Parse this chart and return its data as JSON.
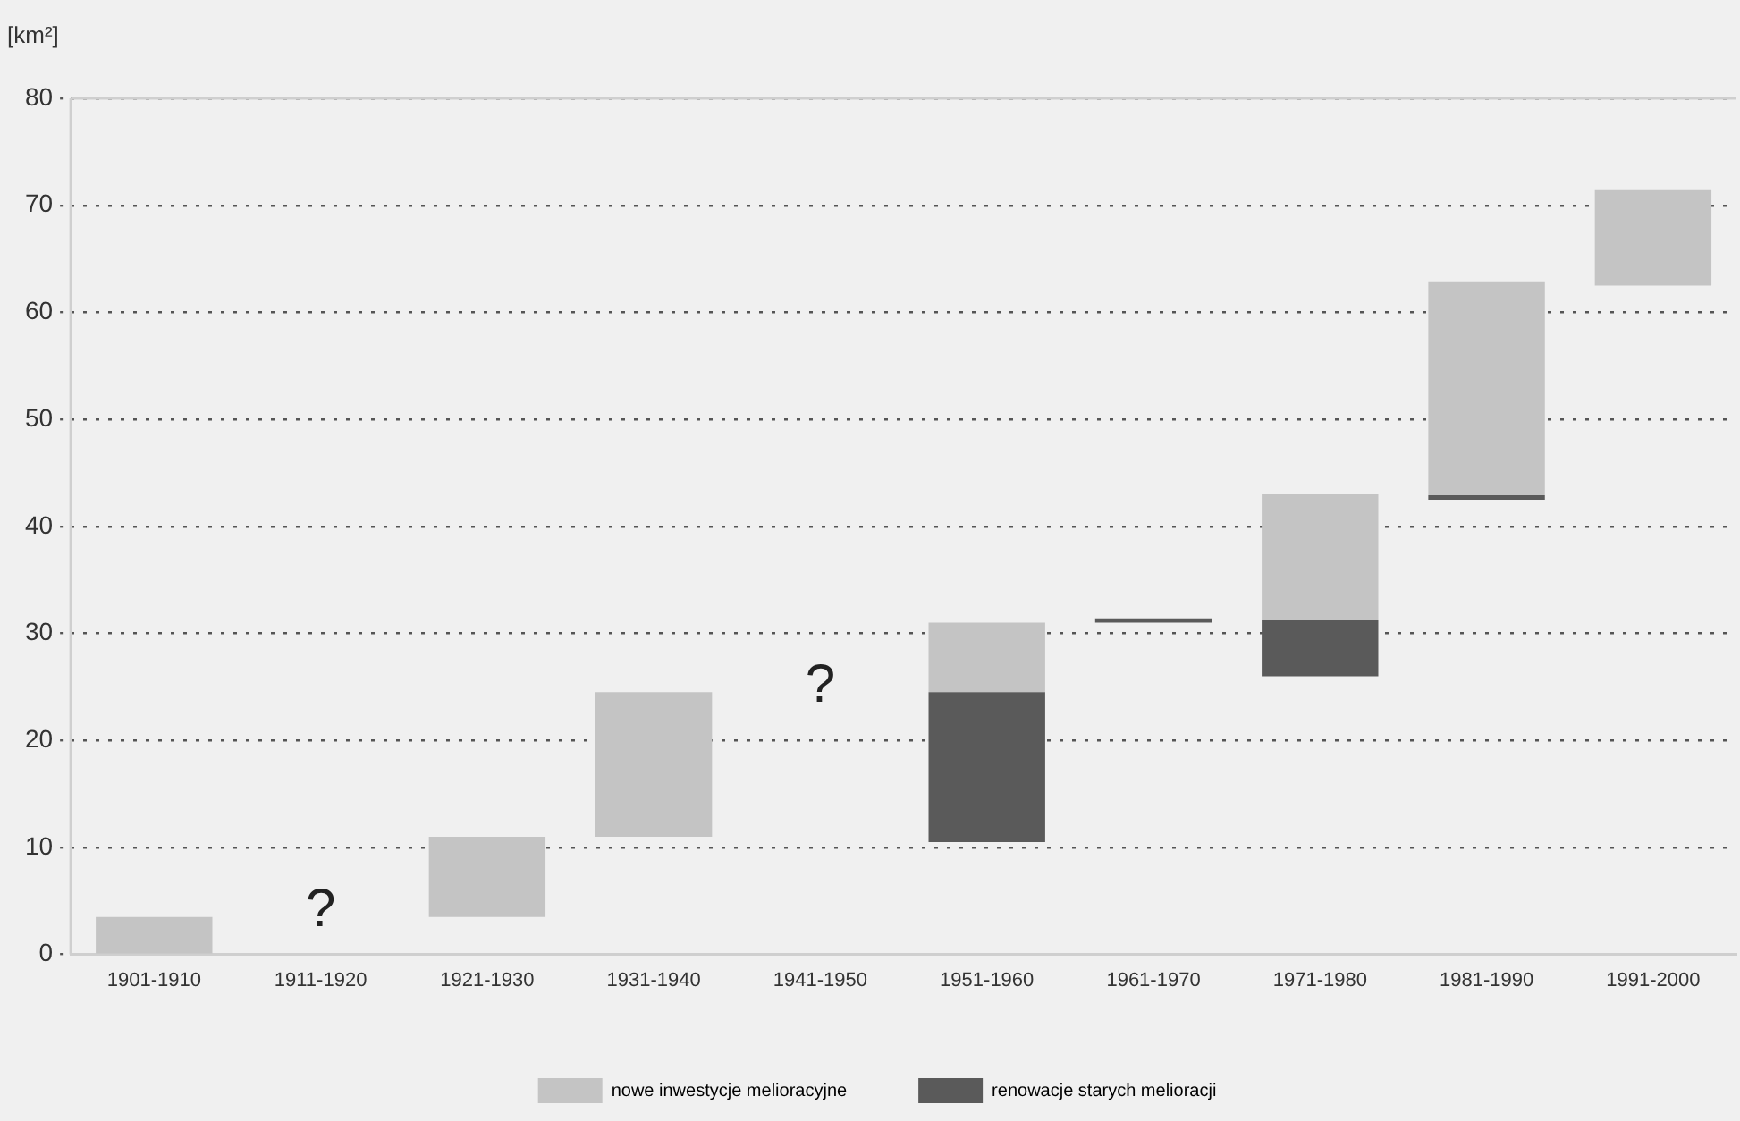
{
  "chart_data": {
    "type": "bar",
    "ylabel": "[km²]",
    "categories": [
      "1901-1910",
      "1911-1920",
      "1921-1930",
      "1931-1940",
      "1941-1950",
      "1951-1960",
      "1961-1970",
      "1971-1980",
      "1981-1990",
      "1991-2000"
    ],
    "series": [
      {
        "name": "renowacje starych melioracji",
        "color": "#5a5a5a",
        "base": [
          null,
          null,
          null,
          null,
          null,
          10.5,
          31,
          26,
          42.5,
          null
        ],
        "values": [
          null,
          null,
          null,
          null,
          null,
          14,
          0.4,
          5.3,
          0.4,
          null
        ]
      },
      {
        "name": "nowe inwestycje melioracyjne",
        "color": "#c4c4c4",
        "base": [
          0,
          null,
          3.5,
          11,
          null,
          24.5,
          null,
          31.3,
          42.9,
          62.5
        ],
        "values": [
          3.5,
          null,
          7.5,
          13.5,
          null,
          6.5,
          null,
          11.7,
          20,
          9
        ]
      }
    ],
    "ylim": [
      0,
      80
    ],
    "yticks": [
      0,
      10,
      20,
      30,
      40,
      50,
      60,
      70,
      80
    ],
    "grid": "y",
    "legend": "bottom",
    "annotations": [
      "?",
      "?"
    ]
  }
}
